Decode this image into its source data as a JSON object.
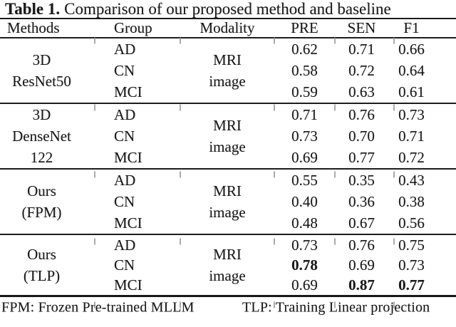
{
  "title": {
    "bold": "Table 1.",
    "rest": "Comparison of our proposed method and baseline"
  },
  "header": {
    "methods": "Methods",
    "group": "Group",
    "modality": "Modality",
    "pre": "PRE",
    "sen": "SEN",
    "f1": "F1"
  },
  "blocks": [
    {
      "method_lines": [
        "3D",
        "ResNet50"
      ],
      "modality_lines": [
        "MRI",
        "image"
      ],
      "rows": [
        {
          "group": "AD",
          "pre": "0.62",
          "sen": "0.71",
          "f1": "0.66"
        },
        {
          "group": "CN",
          "pre": "0.58",
          "sen": "0.72",
          "f1": "0.64"
        },
        {
          "group": "MCI",
          "pre": "0.59",
          "sen": "0.63",
          "f1": "0.61"
        }
      ]
    },
    {
      "method_lines": [
        "3D",
        "DenseNet",
        "122"
      ],
      "modality_lines": [
        "MRI",
        "image"
      ],
      "rows": [
        {
          "group": "AD",
          "pre": "0.71",
          "sen": "0.76",
          "f1": "0.73"
        },
        {
          "group": "CN",
          "pre": "0.73",
          "sen": "0.70",
          "f1": "0.71"
        },
        {
          "group": "MCI",
          "pre": "0.69",
          "sen": "0.77",
          "f1": "0.72"
        }
      ]
    },
    {
      "method_lines": [
        "Ours",
        "(FPM)"
      ],
      "modality_lines": [
        "MRI",
        "image"
      ],
      "rows": [
        {
          "group": "AD",
          "pre": "0.55",
          "sen": "0.35",
          "f1": "0.43"
        },
        {
          "group": "CN",
          "pre": "0.40",
          "sen": "0.36",
          "f1": "0.38"
        },
        {
          "group": "MCI",
          "pre": "0.48",
          "sen": "0.67",
          "f1": "0.56"
        }
      ]
    },
    {
      "method_lines": [
        "Ours",
        "(TLP)"
      ],
      "modality_lines": [
        "MRI",
        "image"
      ],
      "rows": [
        {
          "group": "AD",
          "pre": "0.73",
          "sen": "0.76",
          "f1": "0.75"
        },
        {
          "group": "CN",
          "pre": "0.78",
          "sen": "0.69",
          "f1": "0.73",
          "pre_bold": true
        },
        {
          "group": "MCI",
          "pre": "0.69",
          "sen": "0.87",
          "f1": "0.77",
          "sen_bold": true,
          "f1_bold": true
        }
      ]
    }
  ],
  "footnotes": {
    "left": "FPM: Frozen Pre-trained MLLM",
    "right": "TLP: Training Linear projection"
  },
  "colors": {
    "text": "#1a1a1a",
    "rule": "#1c1c1c",
    "background": "#ffffff"
  }
}
